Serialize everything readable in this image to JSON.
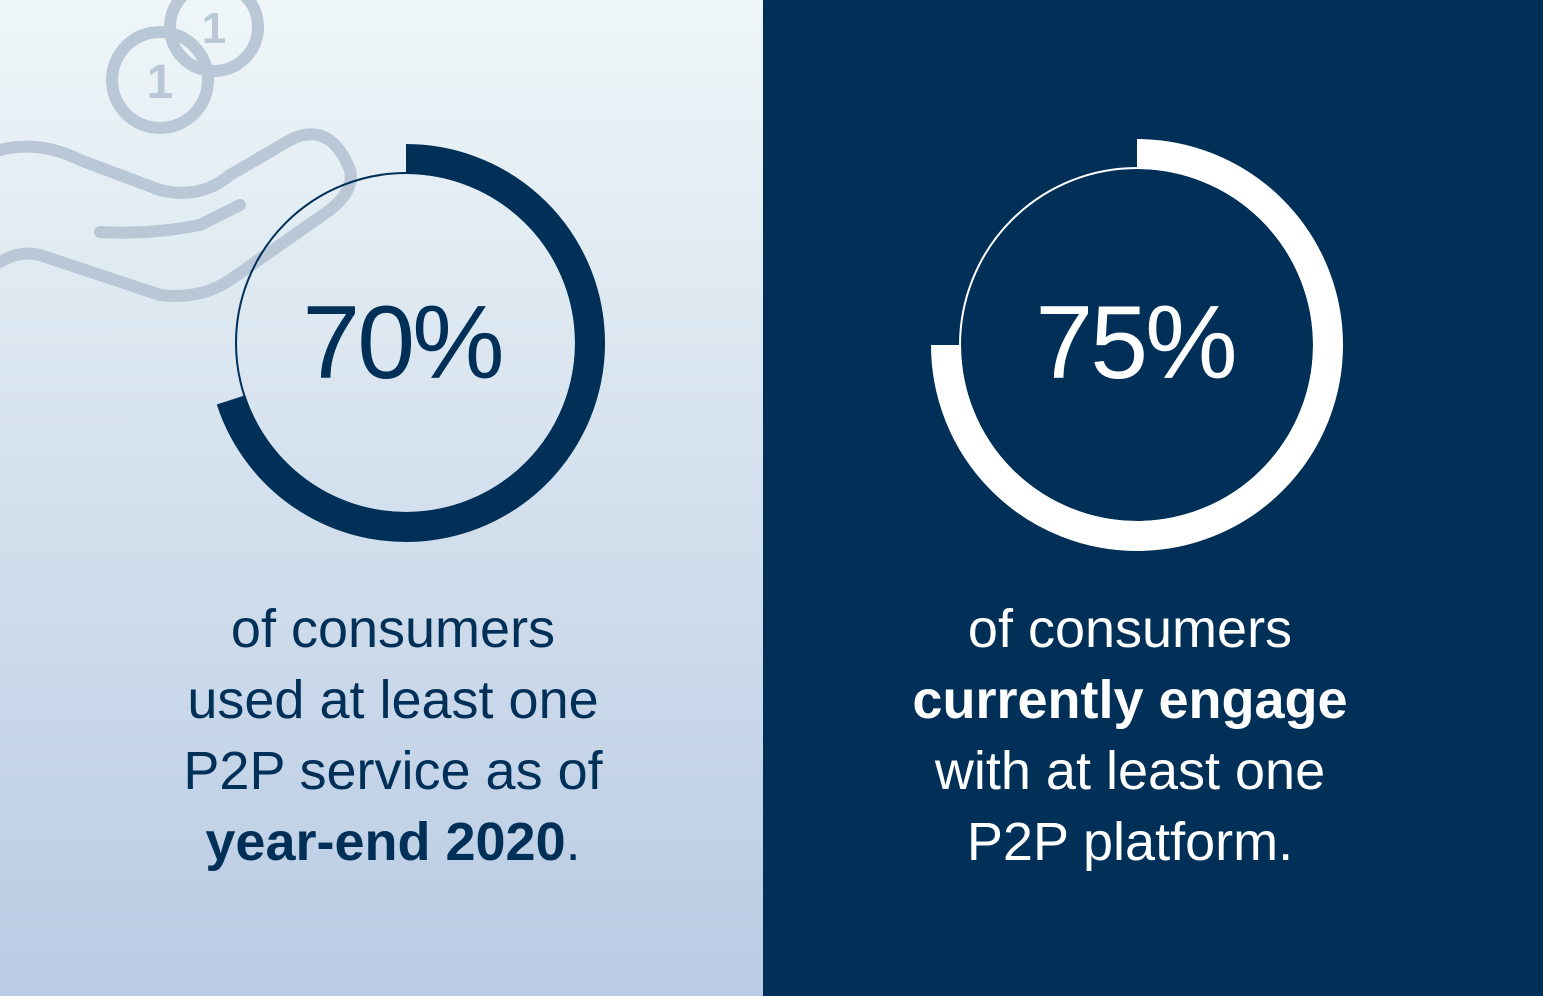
{
  "colors": {
    "navy": "#002f57",
    "white": "#ffffff",
    "icon_gray": "#b9c7d6",
    "left_bg_top": "#eef6f8",
    "left_bg_bottom": "#b9cbe4"
  },
  "icons": {
    "decoration": "hand-with-coins-icon"
  },
  "chart_data": [
    {
      "type": "pie",
      "variant": "donut",
      "value": 70,
      "value_label": "70%",
      "caption": {
        "line1": "of consumers",
        "line2": "used at least one",
        "line3": "P2P service as of",
        "line4_bold": "year-end 2020",
        "line4_tail": "."
      }
    },
    {
      "type": "pie",
      "variant": "donut",
      "value": 75,
      "value_label": "75%",
      "caption": {
        "line1": "of consumers",
        "line2_bold": "currently engage",
        "line3": "with at least one",
        "line4": "P2P platform."
      }
    }
  ]
}
